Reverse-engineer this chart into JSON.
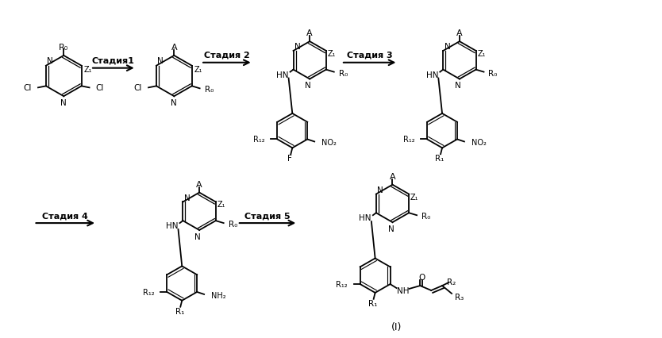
{
  "background_color": "#ffffff",
  "stage_labels": [
    "Стадия1",
    "Стадия 2",
    "Стадия 3",
    "Стадия 4",
    "Стадия 5"
  ],
  "label_I": "(I)",
  "figsize": [
    8.34,
    4.27
  ],
  "dpi": 100
}
